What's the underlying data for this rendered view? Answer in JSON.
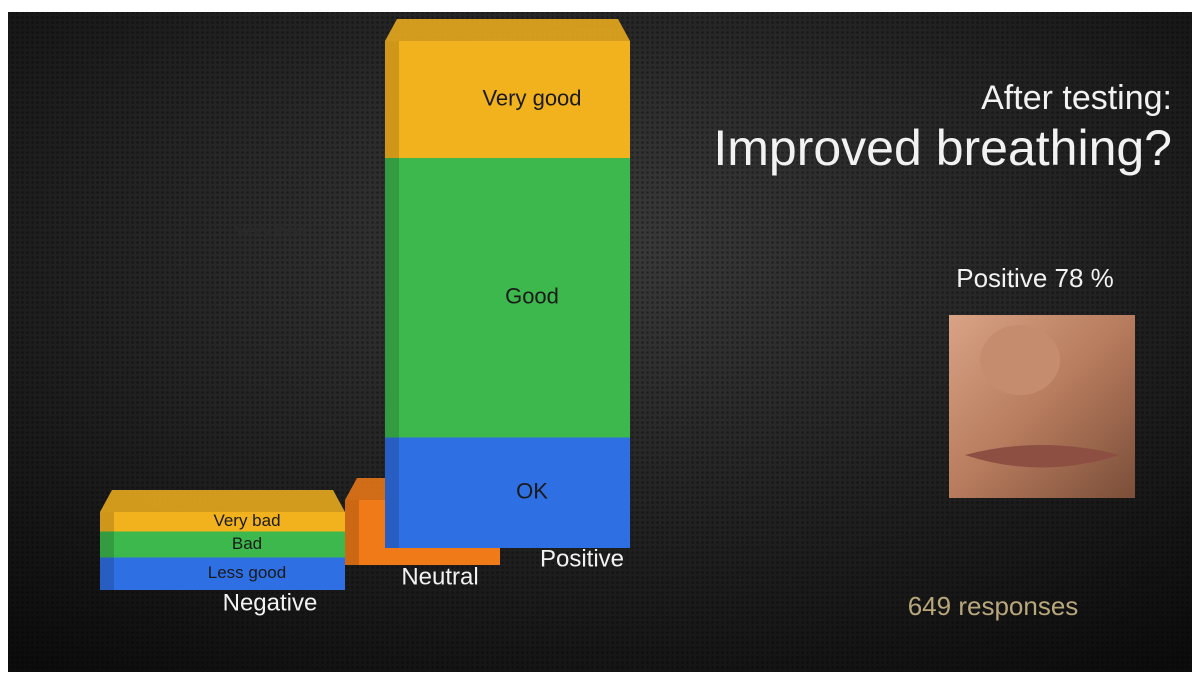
{
  "chart_data": {
    "type": "stacked_bar_3d",
    "title": "After testing:",
    "subtitle": "Improved breathing?",
    "categories": [
      "Negative",
      "Neutral",
      "Positive"
    ],
    "series": [
      {
        "name": "Less good",
        "color": "#2f6fe4",
        "values": [
          5,
          null,
          null
        ]
      },
      {
        "name": "Bad",
        "color": "#3cb84c",
        "values": [
          4,
          null,
          null
        ]
      },
      {
        "name": "Very bad",
        "color": "#f2b21e",
        "values": [
          3,
          null,
          null
        ]
      },
      {
        "color": "#f07a18",
        "values": [
          null,
          10,
          null
        ]
      },
      {
        "name": "OK",
        "color": "#2f6fe4",
        "values": [
          null,
          null,
          17
        ]
      },
      {
        "name": "Good",
        "color": "#3cb84c",
        "values": [
          null,
          null,
          43
        ]
      },
      {
        "name": "Very good",
        "color": "#f2b21e",
        "values": [
          null,
          null,
          18
        ]
      }
    ],
    "annotations": [
      "Positive 78 %",
      "649 responses",
      "Very bad"
    ]
  }
}
